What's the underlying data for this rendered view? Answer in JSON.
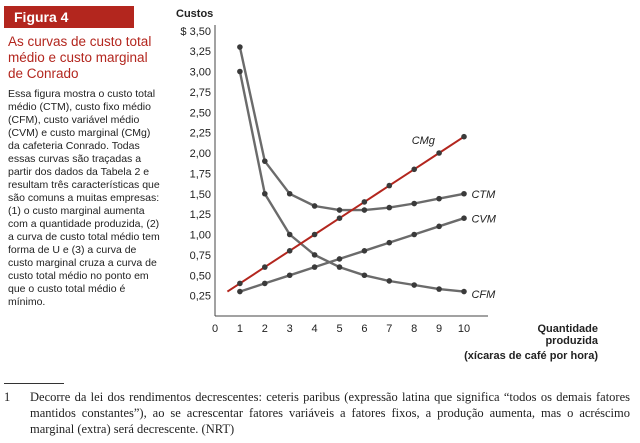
{
  "figure": {
    "badge": "Figura 4",
    "title": "As curvas de custo total médio e custo marginal de Conrado",
    "description": "Essa figura mostra o custo total médio (CTM), custo fixo médio (CFM), custo variável médio (CVM) e custo marginal (CMg) da cafeteria Conrado. Todas essas curvas são traçadas a partir dos dados da Tabela 2 e resultam três características que são comuns a muitas empresas: (1) o custo marginal aumenta com a quantidade produzida, (2) a curva de custo total médio tem forma de U e (3) a curva de custo marginal cruza a curva de custo total médio no ponto em que o custo total médio é mínimo."
  },
  "footnote": {
    "number": "1",
    "text": "Decorre da lei dos rendimentos decrescentes: ceteris paribus (expressão latina que significa “todos os demais fatores mantidos constantes”), ao se acrescentar fatores variáveis a fatores fixos, a produção aumenta, mas o acréscimo marginal (extra) será decrescente. (NRT)"
  },
  "chart_data": {
    "type": "line",
    "ylabel": "Custos",
    "xlabel": "Quantidade produzida (xícaras de café por hora)",
    "xlabel_line1": "Quantidade",
    "xlabel_line2": "produzida",
    "xlabel_line3": "(xícaras de café por hora)",
    "xlim": [
      0,
      11.2
    ],
    "ylim": [
      0,
      3.5
    ],
    "x_ticks": [
      "0",
      "1",
      "2",
      "3",
      "4",
      "5",
      "6",
      "7",
      "8",
      "9",
      "10"
    ],
    "y_ticks": [
      "$ 3,50",
      "3,25",
      "3,00",
      "2,75",
      "2,50",
      "2,25",
      "2,00",
      "1,75",
      "1,50",
      "1,25",
      "1,00",
      "0,75",
      "0,50",
      "0,25"
    ],
    "series": [
      {
        "name": "CMg",
        "color": "#b3261e",
        "x": [
          0.5,
          1,
          2,
          3,
          4,
          5,
          6,
          7,
          8,
          9,
          10
        ],
        "values": [
          0.3,
          0.4,
          0.6,
          0.8,
          1.0,
          1.2,
          1.4,
          1.6,
          1.8,
          2.0,
          2.2
        ]
      },
      {
        "name": "CTM",
        "color": "#6b6b6b",
        "x": [
          1,
          2,
          3,
          4,
          5,
          6,
          7,
          8,
          9,
          10
        ],
        "values": [
          3.3,
          1.9,
          1.5,
          1.35,
          1.3,
          1.3,
          1.33,
          1.38,
          1.44,
          1.5
        ]
      },
      {
        "name": "CVM",
        "color": "#6b6b6b",
        "x": [
          1,
          2,
          3,
          4,
          5,
          6,
          7,
          8,
          9,
          10
        ],
        "values": [
          0.3,
          0.4,
          0.5,
          0.6,
          0.7,
          0.8,
          0.9,
          1.0,
          1.1,
          1.2
        ]
      },
      {
        "name": "CFM",
        "color": "#6b6b6b",
        "x": [
          1,
          2,
          3,
          4,
          5,
          6,
          7,
          8,
          9,
          10
        ],
        "values": [
          3.0,
          1.5,
          1.0,
          0.75,
          0.6,
          0.5,
          0.43,
          0.38,
          0.33,
          0.3
        ]
      }
    ]
  }
}
